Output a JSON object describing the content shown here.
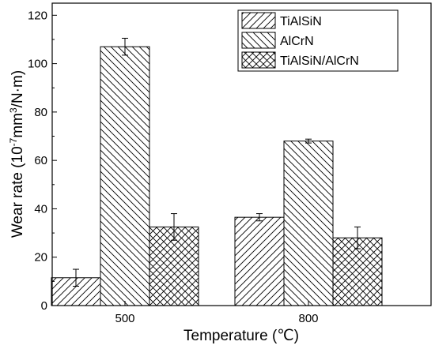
{
  "chart_data": {
    "type": "bar",
    "categories": [
      "500",
      "800"
    ],
    "series": [
      {
        "name": "TiAlSiN",
        "values": [
          11.5,
          36.5
        ],
        "errors": [
          3.5,
          1.5
        ],
        "pattern": "hatch-forward"
      },
      {
        "name": "AlCrN",
        "values": [
          107.0,
          68.0
        ],
        "errors": [
          3.5,
          0.8
        ],
        "pattern": "hatch-backward"
      },
      {
        "name": "TiAlSiN/AlCrN",
        "values": [
          32.5,
          28.0
        ],
        "errors": [
          5.5,
          4.5
        ],
        "pattern": "crosshatch"
      }
    ],
    "xlabel": "Temperature (℃)",
    "ylabel_main": "Wear rate (10",
    "ylabel_exp1": "-7",
    "ylabel_mid": "mm",
    "ylabel_exp2": "3",
    "ylabel_end": "/N·m)",
    "ylim": [
      0,
      125
    ],
    "yticks": [
      "0",
      "20",
      "40",
      "60",
      "80",
      "100",
      "120"
    ],
    "legend_position": "top-right",
    "grid": false
  }
}
